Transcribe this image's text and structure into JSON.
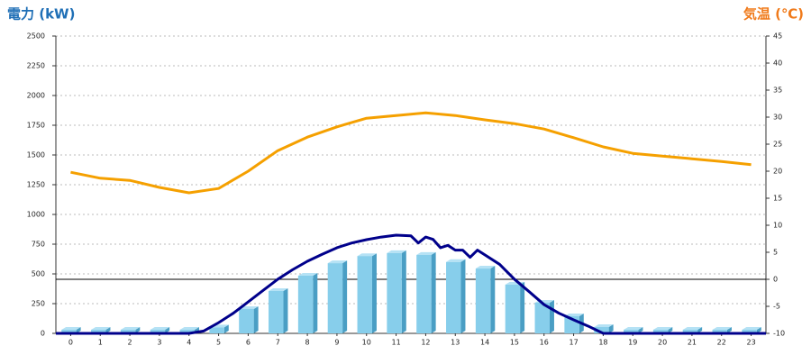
{
  "chart_data": {
    "type": "bar_line",
    "y_axis_title": "電力 (kW)",
    "y2_axis_title": "気温 (℃)",
    "categories": [
      "0",
      "1",
      "2",
      "3",
      "4",
      "5",
      "6",
      "7",
      "8",
      "9",
      "10",
      "11",
      "12",
      "13",
      "14",
      "15",
      "16",
      "17",
      "18",
      "19",
      "20",
      "21",
      "22",
      "23"
    ],
    "series": [
      {
        "type": "bar",
        "color": "#87ceeb",
        "values": [
          30,
          30,
          30,
          30,
          30,
          50,
          205,
          356,
          485,
          590,
          650,
          675,
          660,
          600,
          545,
          410,
          258,
          144,
          53,
          30,
          30,
          30,
          30,
          30
        ]
      },
      {
        "type": "line",
        "color": "#f5a000",
        "axis": "y2",
        "values": [
          19.8,
          18.7,
          18.3,
          17,
          16,
          16.8,
          20,
          23.8,
          26.3,
          28.2,
          29.8,
          30.3,
          30.8,
          30.3,
          29.5,
          28.8,
          27.8,
          26.2,
          24.5,
          23.3,
          22.8,
          22.3,
          21.8,
          21.2
        ]
      },
      {
        "type": "line",
        "color": "#00008b",
        "x": [
          -0.5,
          0,
          1,
          2,
          3,
          4,
          4.5,
          5,
          5.5,
          6,
          6.5,
          7,
          7.5,
          8,
          8.5,
          9,
          9.5,
          10,
          10.5,
          11,
          11.5,
          11.75,
          12,
          12.25,
          12.5,
          12.75,
          13,
          13.25,
          13.5,
          13.75,
          14,
          14.5,
          15,
          15.5,
          16,
          16.5,
          17,
          17.5,
          18,
          19,
          20,
          21,
          22,
          23,
          23.5
        ],
        "values": [
          0,
          0,
          0,
          0,
          0,
          0,
          20,
          90,
          170,
          265,
          360,
          455,
          535,
          606,
          665,
          720,
          760,
          788,
          810,
          826,
          820,
          760,
          810,
          790,
          720,
          740,
          700,
          700,
          640,
          700,
          660,
          580,
          455,
          350,
          242,
          170,
          114,
          60,
          0,
          0,
          0,
          0,
          0,
          0,
          0
        ]
      }
    ],
    "xlim": [
      -0.5,
      23.5
    ],
    "ylim": [
      0,
      2500
    ],
    "yticks": [
      0,
      250,
      500,
      750,
      1000,
      1250,
      1500,
      1750,
      2000,
      2250,
      2500
    ],
    "y2lim": [
      -10,
      45
    ],
    "y2ticks": [
      -10,
      -5,
      0,
      5,
      10,
      15,
      20,
      25,
      30,
      35,
      40,
      45
    ],
    "y2_reference_line": 0,
    "grid": true
  }
}
